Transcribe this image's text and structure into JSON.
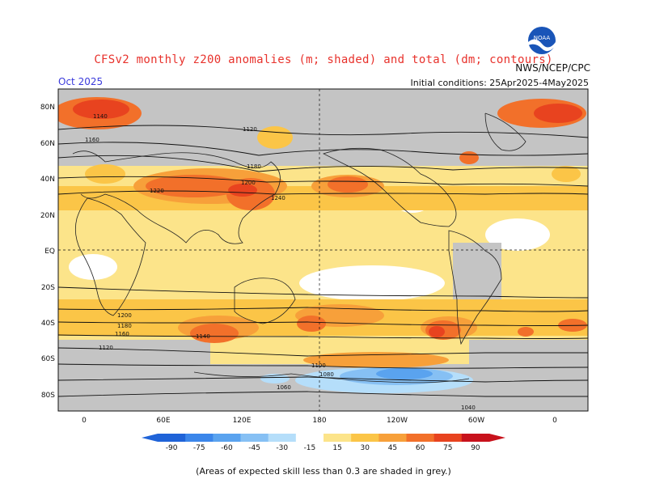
{
  "header": {
    "title": "CFSv2 monthly z200 anomalies (m; shaded) and total (dm; contours)",
    "valid_month": "Oct 2025",
    "agency": "NWS/NCEP/CPC",
    "init_conditions": "Initial conditions: 25Apr2025-4May2025",
    "logo_text": "NOAA"
  },
  "map": {
    "lat_labels": [
      "80N",
      "60N",
      "40N",
      "20N",
      "EQ",
      "20S",
      "40S",
      "60S",
      "80S"
    ],
    "lon_labels": [
      "0",
      "60E",
      "120E",
      "180",
      "120W",
      "60W",
      "0"
    ],
    "contour_labels": [
      "1120",
      "1140",
      "1160",
      "1180",
      "1200",
      "1220",
      "1240",
      "1200",
      "1180",
      "1160",
      "1140",
      "1120",
      "1100",
      "1080",
      "1060",
      "1040"
    ]
  },
  "colorbar": {
    "ticks": [
      "-90",
      "-75",
      "-60",
      "-45",
      "-30",
      "-15",
      "15",
      "30",
      "45",
      "60",
      "75",
      "90"
    ],
    "colors": [
      "#1f63d8",
      "#3b86ea",
      "#5aa3ef",
      "#86c0f4",
      "#b5defa",
      "#ffffff",
      "#fce48a",
      "#fbc547",
      "#f7a03a",
      "#f2702a",
      "#e8431f",
      "#c8121c"
    ]
  },
  "footnote": "(Areas of expected skill less than 0.3 are shaded in grey.)"
}
